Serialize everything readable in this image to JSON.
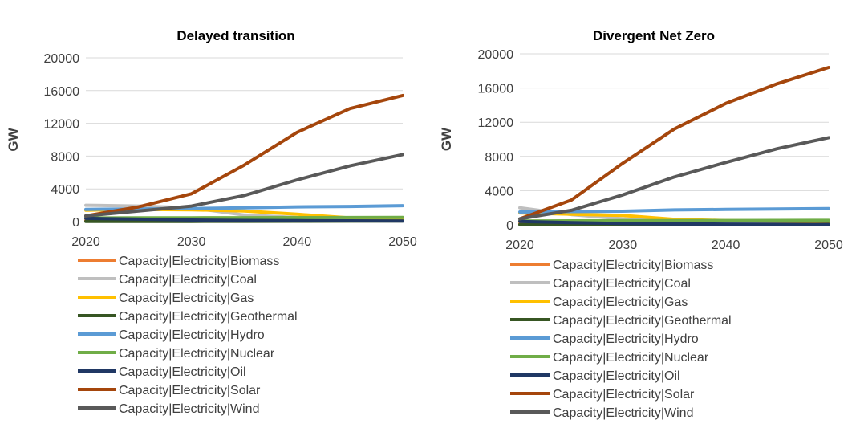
{
  "chart_data": [
    {
      "type": "line",
      "title": "Delayed transition",
      "ylabel": "GW",
      "xlabel": "",
      "x": [
        2020,
        2025,
        2030,
        2035,
        2040,
        2045,
        2050
      ],
      "xticks": [
        "2020",
        "2030",
        "2040",
        "2050"
      ],
      "yticks": [
        "0",
        "4000",
        "8000",
        "12000",
        "16000",
        "20000"
      ],
      "ylim": [
        0,
        20000
      ],
      "xlim": [
        2020,
        2050
      ],
      "grid": true,
      "legend_position": "bottom",
      "series": [
        {
          "name": "Capacity|Electricity|Biomass",
          "color": "#ed7d31",
          "values": [
            150,
            170,
            180,
            170,
            160,
            150,
            140
          ]
        },
        {
          "name": "Capacity|Electricity|Coal",
          "color": "#bfbfbf",
          "values": [
            2000,
            1900,
            1700,
            800,
            500,
            400,
            300
          ]
        },
        {
          "name": "Capacity|Electricity|Gas",
          "color": "#ffc000",
          "values": [
            1400,
            1500,
            1450,
            1300,
            900,
            450,
            400
          ]
        },
        {
          "name": "Capacity|Electricity|Geothermal",
          "color": "#375623",
          "values": [
            20,
            25,
            30,
            40,
            50,
            60,
            70
          ]
        },
        {
          "name": "Capacity|Electricity|Hydro",
          "color": "#5b9bd5",
          "values": [
            1500,
            1550,
            1600,
            1700,
            1800,
            1850,
            1950
          ]
        },
        {
          "name": "Capacity|Electricity|Nuclear",
          "color": "#70ad47",
          "values": [
            450,
            460,
            470,
            480,
            490,
            500,
            510
          ]
        },
        {
          "name": "Capacity|Electricity|Oil",
          "color": "#203864",
          "values": [
            400,
            300,
            200,
            150,
            120,
            100,
            80
          ]
        },
        {
          "name": "Capacity|Electricity|Solar",
          "color": "#a5460c",
          "values": [
            700,
            1800,
            3400,
            6900,
            10900,
            13800,
            15400
          ]
        },
        {
          "name": "Capacity|Electricity|Wind",
          "color": "#595959",
          "values": [
            700,
            1300,
            1900,
            3200,
            5100,
            6800,
            8200
          ]
        }
      ]
    },
    {
      "type": "line",
      "title": "Divergent Net Zero",
      "ylabel": "GW",
      "xlabel": "",
      "x": [
        2020,
        2025,
        2030,
        2035,
        2040,
        2045,
        2050
      ],
      "xticks": [
        "2020",
        "2030",
        "2040",
        "2050"
      ],
      "yticks": [
        "0",
        "4000",
        "8000",
        "12000",
        "16000",
        "20000"
      ],
      "ylim": [
        0,
        20000
      ],
      "xlim": [
        2020,
        2050
      ],
      "grid": true,
      "legend_position": "bottom",
      "series": [
        {
          "name": "Capacity|Electricity|Biomass",
          "color": "#ed7d31",
          "values": [
            150,
            170,
            180,
            160,
            150,
            140,
            130
          ]
        },
        {
          "name": "Capacity|Electricity|Coal",
          "color": "#bfbfbf",
          "values": [
            2000,
            1200,
            700,
            400,
            300,
            250,
            200
          ]
        },
        {
          "name": "Capacity|Electricity|Gas",
          "color": "#ffc000",
          "values": [
            1400,
            1250,
            1100,
            650,
            500,
            450,
            400
          ]
        },
        {
          "name": "Capacity|Electricity|Geothermal",
          "color": "#375623",
          "values": [
            20,
            25,
            30,
            40,
            50,
            60,
            70
          ]
        },
        {
          "name": "Capacity|Electricity|Hydro",
          "color": "#5b9bd5",
          "values": [
            1500,
            1550,
            1600,
            1750,
            1800,
            1850,
            1900
          ]
        },
        {
          "name": "Capacity|Electricity|Nuclear",
          "color": "#70ad47",
          "values": [
            450,
            470,
            490,
            500,
            510,
            520,
            530
          ]
        },
        {
          "name": "Capacity|Electricity|Oil",
          "color": "#203864",
          "values": [
            400,
            250,
            150,
            100,
            80,
            60,
            50
          ]
        },
        {
          "name": "Capacity|Electricity|Solar",
          "color": "#a5460c",
          "values": [
            700,
            2900,
            7200,
            11200,
            14200,
            16500,
            18400
          ]
        },
        {
          "name": "Capacity|Electricity|Wind",
          "color": "#595959",
          "values": [
            700,
            1700,
            3500,
            5600,
            7300,
            8900,
            10200
          ]
        }
      ]
    }
  ]
}
